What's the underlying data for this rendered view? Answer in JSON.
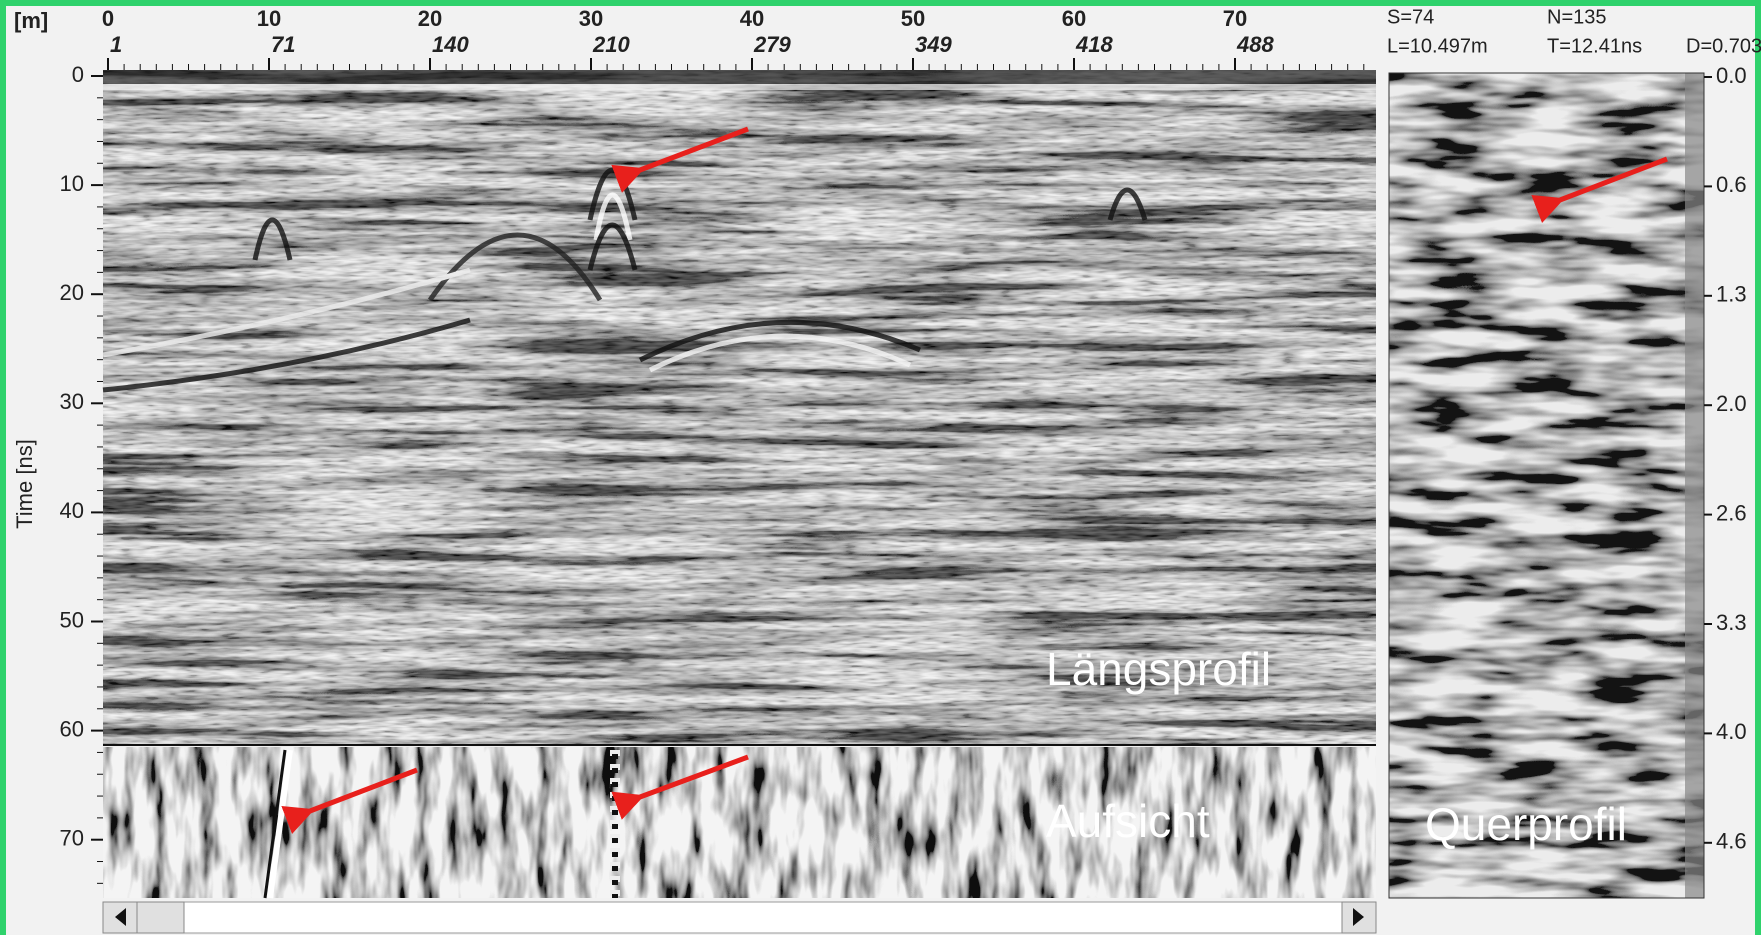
{
  "header": {
    "unit": "[m]",
    "distance_ticks": [
      "0",
      "10",
      "20",
      "30",
      "40",
      "50",
      "60",
      "70"
    ],
    "trace_ticks": [
      "1",
      "71",
      "140",
      "210",
      "279",
      "349",
      "418",
      "488"
    ],
    "info": {
      "s": "S=74",
      "n": "N=135",
      "l": "L=10.497m",
      "t": "T=12.41ns",
      "d": "D=0.703"
    }
  },
  "left_axis": {
    "title": "Time [ns]",
    "ticks": [
      "0",
      "10",
      "20",
      "30",
      "40",
      "50",
      "60",
      "70"
    ]
  },
  "right_axis": {
    "ticks": [
      "0.0",
      "0.6",
      "1.3",
      "2.0",
      "2.6",
      "3.3",
      "4.0",
      "4.6"
    ]
  },
  "panels": {
    "longitudinal": "Längsprofil",
    "plan": "Aufsicht",
    "cross": "Querprofil"
  }
}
